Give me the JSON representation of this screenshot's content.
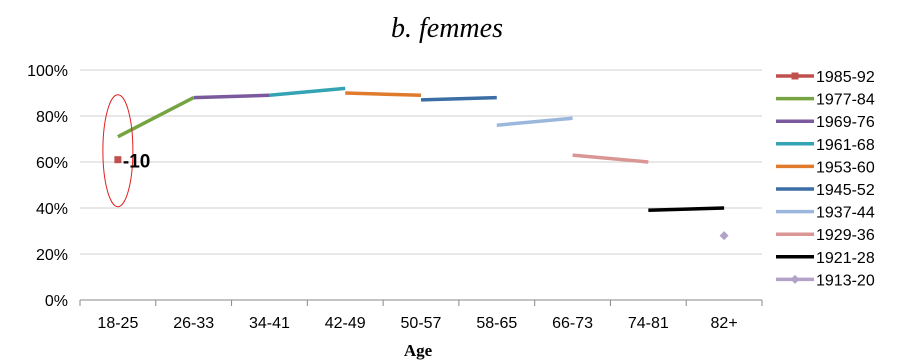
{
  "chart_data": {
    "type": "line",
    "title": "b. femmes",
    "xlabel": "Age",
    "ylabel": "",
    "categories": [
      "18-25",
      "26-33",
      "34-41",
      "42-49",
      "50-57",
      "58-65",
      "66-73",
      "74-81",
      "82+"
    ],
    "y_ticks": [
      "0%",
      "20%",
      "40%",
      "60%",
      "80%",
      "100%"
    ],
    "ylim": [
      0,
      100
    ],
    "grid": "horizontal",
    "legend_position": "right",
    "series": [
      {
        "name": "1985-92",
        "color": "#c0504d",
        "marker": "square",
        "points": [
          {
            "x": "18-25",
            "y": 61
          }
        ]
      },
      {
        "name": "1977-84",
        "color": "#77a442",
        "points": [
          {
            "x": "18-25",
            "y": 71
          },
          {
            "x": "26-33",
            "y": 88
          }
        ]
      },
      {
        "name": "1969-76",
        "color": "#7a5a9c",
        "points": [
          {
            "x": "26-33",
            "y": 88
          },
          {
            "x": "34-41",
            "y": 89
          }
        ]
      },
      {
        "name": "1961-68",
        "color": "#34a3b3",
        "points": [
          {
            "x": "34-41",
            "y": 89
          },
          {
            "x": "42-49",
            "y": 92
          }
        ]
      },
      {
        "name": "1953-60",
        "color": "#e07b2e",
        "points": [
          {
            "x": "42-49",
            "y": 90
          },
          {
            "x": "50-57",
            "y": 89
          }
        ]
      },
      {
        "name": "1945-52",
        "color": "#3b6ea5",
        "points": [
          {
            "x": "50-57",
            "y": 87
          },
          {
            "x": "58-65",
            "y": 88
          }
        ]
      },
      {
        "name": "1937-44",
        "color": "#9bb7dc",
        "points": [
          {
            "x": "58-65",
            "y": 76
          },
          {
            "x": "66-73",
            "y": 79
          }
        ]
      },
      {
        "name": "1929-36",
        "color": "#d99694",
        "points": [
          {
            "x": "66-73",
            "y": 63
          },
          {
            "x": "74-81",
            "y": 60
          }
        ]
      },
      {
        "name": "1921-28",
        "color": "#000000",
        "points": [
          {
            "x": "74-81",
            "y": 39
          },
          {
            "x": "82+",
            "y": 40
          }
        ]
      },
      {
        "name": "1913-20",
        "color": "#b3a2c7",
        "marker": "diamond",
        "points": [
          {
            "x": "82+",
            "y": 28
          }
        ]
      }
    ],
    "annotations": [
      {
        "text": "-10",
        "x": "18-25",
        "y": 61,
        "highlight": "red-ellipse"
      }
    ]
  }
}
